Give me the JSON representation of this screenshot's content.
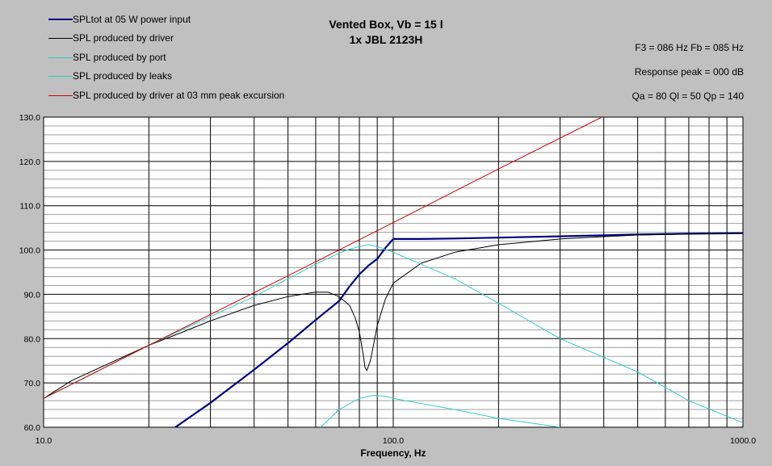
{
  "title_line1": "Vented Box, Vb = 15 l",
  "title_line2": "1x JBL 2123H",
  "info": {
    "f3_fb": "F3 = 086 Hz  Fb = 085 Hz",
    "response_peak": "Response peak = 000 dB",
    "q_values": "Qa = 80  Ql = 50  Qp = 140"
  },
  "legend": [
    {
      "label": "SPLtot at 05 W power input",
      "color": "#000080",
      "width": 2.2
    },
    {
      "label": "SPL produced by driver",
      "color": "#000000",
      "width": 1
    },
    {
      "label": "SPL produced by port",
      "color": "#33cccc",
      "width": 1
    },
    {
      "label": "SPL produced by leaks",
      "color": "#33cccc",
      "width": 1
    },
    {
      "label": "SPL produced by driver at 03 mm peak excursion",
      "color": "#cc0000",
      "width": 1
    }
  ],
  "chart_data": {
    "type": "line",
    "xlabel": "Frequency, Hz",
    "ylabel": "",
    "x_scale": "log",
    "xlim": [
      10,
      1000
    ],
    "ylim": [
      60,
      130
    ],
    "x_tick_labels": [
      "10.0",
      "100.0",
      "1000.0"
    ],
    "y_tick_labels": [
      "60.0",
      "70.0",
      "80.0",
      "90.0",
      "100.0",
      "110.0",
      "120.0",
      "130.0"
    ],
    "grid": true,
    "series": [
      {
        "name": "SPLtot at 05 W power input",
        "color": "#000080",
        "x": [
          23.8,
          30,
          40,
          50,
          60,
          70,
          75,
          80,
          85,
          90,
          95,
          100,
          120,
          150,
          200,
          300,
          500,
          700,
          1000
        ],
        "y": [
          60,
          65.5,
          73,
          79,
          84.2,
          88.5,
          91.8,
          94.5,
          96.5,
          98,
          100.5,
          102.5,
          102.5,
          102.6,
          102.8,
          103.1,
          103.5,
          103.7,
          103.8
        ]
      },
      {
        "name": "SPL produced by driver",
        "color": "#000000",
        "x": [
          10,
          12,
          15,
          20,
          25,
          30,
          40,
          50,
          60,
          65,
          70,
          75,
          78,
          80,
          82,
          83,
          84,
          86,
          88,
          90,
          95,
          100,
          120,
          150,
          200,
          300,
          500,
          1000
        ],
        "y": [
          66.5,
          70.5,
          74,
          78.5,
          81.5,
          84,
          87.5,
          89.5,
          90.5,
          90.5,
          89.5,
          87.5,
          84.5,
          81.5,
          76.5,
          73.5,
          72.8,
          75,
          79,
          83,
          89,
          92.5,
          97,
          99.5,
          101.2,
          102.5,
          103.4,
          103.8
        ]
      },
      {
        "name": "SPL produced by port",
        "color": "#33cccc",
        "x": [
          10,
          20,
          30,
          40,
          50,
          60,
          70,
          75,
          80,
          85,
          90,
          100,
          150,
          200,
          300,
          500,
          700,
          1000
        ],
        "y": [
          66.5,
          78.5,
          85,
          89.5,
          93.5,
          96.8,
          99.3,
          100.2,
          100.8,
          101.2,
          100.8,
          99.5,
          93.5,
          88,
          80,
          72.5,
          66,
          61
        ]
      },
      {
        "name": "SPL produced by leaks",
        "color": "#33cccc",
        "x": [
          62,
          70,
          80,
          88,
          95,
          100,
          150,
          200,
          300
        ],
        "y": [
          60,
          64,
          66.5,
          67.2,
          67,
          66.5,
          64,
          62,
          60
        ]
      },
      {
        "name": "SPL produced by driver at 03 mm peak excursion",
        "color": "#cc0000",
        "x": [
          10,
          20,
          50,
          100,
          200,
          395
        ],
        "y": [
          66.5,
          78.5,
          94.2,
          106.2,
          118.3,
          130
        ]
      }
    ]
  }
}
